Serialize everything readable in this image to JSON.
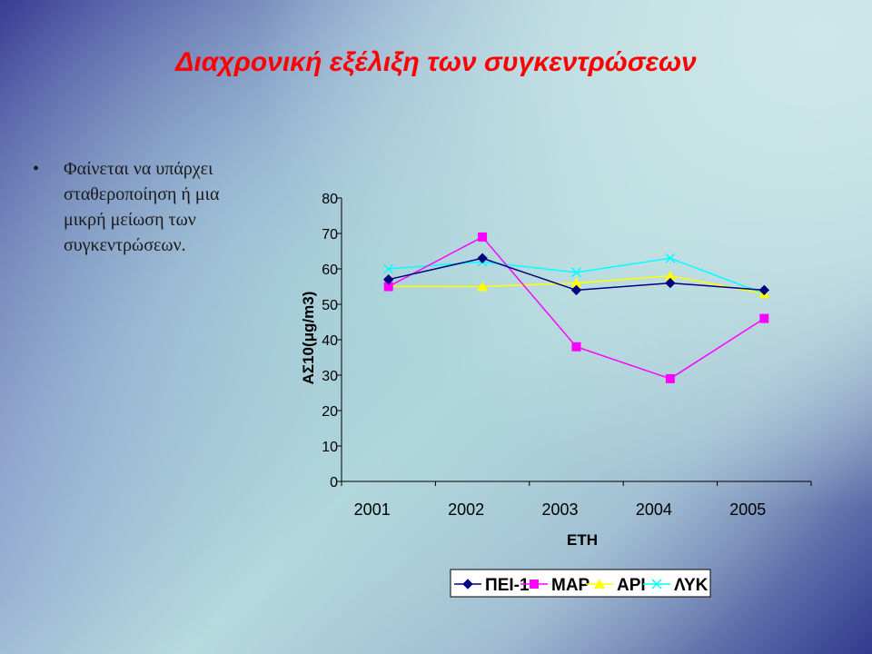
{
  "slide": {
    "title": "Διαχρονική εξέλιξη των συγκεντρώσεων",
    "bullets": [
      "Φαίνεται να υπάρχει σταθεροποίηση ή μια μικρή μείωση των συγκεντρώσεων."
    ]
  },
  "colors": {
    "title": "#ff0000"
  },
  "chart_data": {
    "type": "line",
    "title": "",
    "xlabel": "ΕΤΗ",
    "ylabel": "ΑΣ10(μg/m3)",
    "categories": [
      "2001",
      "2002",
      "2003",
      "2004",
      "2005"
    ],
    "ylim": [
      0,
      80
    ],
    "yticks": [
      0,
      10,
      20,
      30,
      40,
      50,
      60,
      70,
      80
    ],
    "grid": false,
    "legend_position": "bottom",
    "series": [
      {
        "name": "ΠΕΙ-1",
        "values": [
          57,
          63,
          54,
          56,
          54
        ],
        "color": "#000080",
        "marker": "diamond"
      },
      {
        "name": "ΜΑΡ",
        "values": [
          55,
          69,
          38,
          29,
          46
        ],
        "color": "#ff00ff",
        "marker": "square"
      },
      {
        "name": "ΑΡΙ",
        "values": [
          55,
          55,
          56,
          58,
          53
        ],
        "color": "#ffff00",
        "marker": "triangle"
      },
      {
        "name": "ΛΥΚ",
        "values": [
          60,
          62,
          59,
          63,
          53
        ],
        "color": "#00ffff",
        "marker": "x"
      }
    ]
  }
}
